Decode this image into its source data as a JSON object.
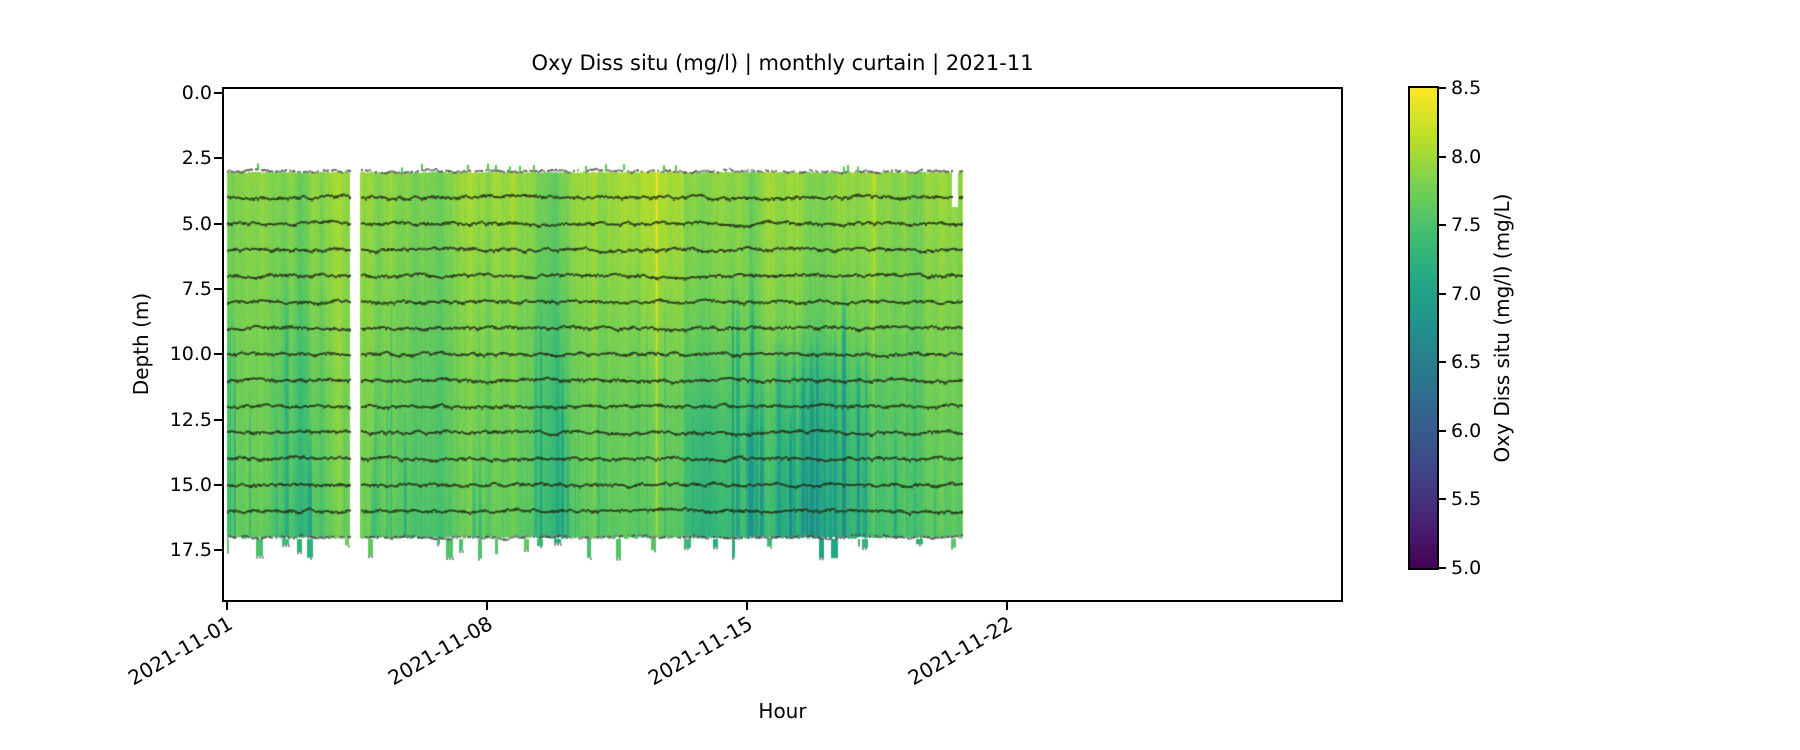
{
  "title": "Oxy Diss situ (mg/l) | monthly curtain | 2021-11",
  "axes": {
    "xlabel": "Hour",
    "ylabel": "Depth (m)",
    "x_tick_labels": [
      "2021-11-01",
      "2021-11-08",
      "2021-11-15",
      "2021-11-22"
    ],
    "x_tick_days": [
      0,
      7,
      14,
      21
    ],
    "x_range_days": [
      0,
      30
    ],
    "y_ticks": [
      "0.0",
      "2.5",
      "5.0",
      "7.5",
      "10.0",
      "12.5",
      "15.0",
      "17.5"
    ],
    "y_tick_values": [
      0,
      2.5,
      5,
      7.5,
      10,
      12.5,
      15,
      17.5
    ],
    "y_range": [
      0,
      19.4
    ]
  },
  "colorbar": {
    "label": "Oxy Diss situ (mg/l) (mg/L)",
    "ticks": [
      "8.5",
      "8.0",
      "7.5",
      "7.0",
      "6.5",
      "6.0",
      "5.5",
      "5.0"
    ],
    "tick_values": [
      8.5,
      8.0,
      7.5,
      7.0,
      6.5,
      6.0,
      5.5,
      5.0
    ],
    "vmin": 5.0,
    "vmax": 8.5,
    "colormap": "viridis",
    "viridis_stops": [
      "#440154",
      "#482475",
      "#414487",
      "#355f8d",
      "#2a788e",
      "#21918c",
      "#22a884",
      "#44bf70",
      "#7ad151",
      "#bddf26",
      "#fde725"
    ]
  },
  "chart_data": {
    "type": "heatmap",
    "title": "Oxy Diss situ (mg/l) | monthly curtain | 2021-11",
    "xlabel": "Hour",
    "ylabel": "Depth (m)",
    "month": "2021-11",
    "x_start": "2021-11-01",
    "data_end_day": 19.8,
    "depth_top": 3.0,
    "depth_bottom": 17.0,
    "sparse_bottom_max": 17.9,
    "sensor_line_depths": [
      3,
      4,
      5,
      6,
      7,
      8,
      9,
      10,
      11,
      12,
      13,
      14,
      15,
      16,
      17
    ],
    "gaps": [
      {
        "start_day": 3.3,
        "end_day": 3.58,
        "depth_min": 0,
        "depth_max": 20
      },
      {
        "start_day": 19.5,
        "end_day": 19.68,
        "depth_min": 0,
        "depth_max": 4.35
      }
    ],
    "grid": {
      "days": [
        0,
        1,
        2,
        3,
        4,
        5,
        6,
        7,
        8,
        9,
        10,
        11,
        12,
        13,
        14,
        15,
        16,
        17,
        18,
        19
      ],
      "depths": [
        3,
        5,
        7,
        9,
        11,
        13,
        15,
        17
      ],
      "values": [
        [
          7.85,
          7.85,
          7.8,
          7.85,
          7.85,
          7.85,
          7.9,
          7.9,
          7.9,
          7.85,
          7.95,
          8.1,
          8.05,
          7.9,
          7.85,
          7.85,
          7.8,
          7.85,
          7.9,
          8.0
        ],
        [
          7.8,
          7.8,
          7.75,
          7.8,
          7.8,
          7.8,
          7.85,
          7.85,
          7.85,
          7.8,
          7.9,
          8.05,
          8.0,
          7.85,
          7.8,
          7.8,
          7.75,
          7.8,
          7.85,
          7.95
        ],
        [
          7.78,
          7.78,
          7.7,
          7.78,
          7.78,
          7.78,
          7.8,
          7.8,
          7.8,
          7.75,
          7.85,
          7.95,
          7.95,
          7.8,
          7.78,
          7.75,
          7.7,
          7.75,
          7.8,
          7.9
        ],
        [
          7.75,
          7.75,
          7.6,
          7.75,
          7.75,
          7.72,
          7.75,
          7.75,
          7.72,
          7.65,
          7.8,
          7.85,
          7.85,
          7.7,
          7.7,
          7.65,
          7.6,
          7.68,
          7.75,
          7.85
        ],
        [
          7.72,
          7.7,
          7.5,
          7.7,
          7.7,
          7.68,
          7.7,
          7.7,
          7.68,
          7.6,
          7.72,
          7.78,
          7.75,
          7.55,
          7.6,
          7.4,
          7.35,
          7.45,
          7.65,
          7.8
        ],
        [
          7.7,
          7.68,
          7.45,
          7.68,
          7.68,
          7.62,
          7.68,
          7.65,
          7.62,
          7.55,
          7.68,
          7.72,
          7.7,
          7.35,
          7.5,
          7.25,
          7.2,
          7.35,
          7.6,
          7.75
        ],
        [
          7.68,
          7.65,
          7.4,
          7.65,
          7.65,
          7.6,
          7.65,
          7.62,
          7.6,
          7.5,
          7.65,
          7.7,
          7.68,
          7.3,
          7.45,
          7.15,
          7.1,
          7.3,
          7.55,
          7.7
        ],
        [
          7.65,
          7.6,
          7.35,
          7.6,
          7.6,
          7.55,
          7.6,
          7.6,
          7.55,
          7.45,
          7.6,
          7.65,
          7.6,
          7.25,
          7.4,
          7.1,
          7.05,
          7.25,
          7.5,
          7.65
        ]
      ]
    },
    "streaks": {
      "base_prob": 0.04,
      "cluster_prob": 0.22,
      "strength": [
        0.15,
        0.6
      ],
      "top_depth": [
        6,
        14
      ],
      "clusters": [
        {
          "day_start": 2.0,
          "day_end": 2.45
        },
        {
          "day_start": 8.8,
          "day_end": 9.2
        },
        {
          "day_start": 13.2,
          "day_end": 14.4
        },
        {
          "day_start": 14.7,
          "day_end": 18.4
        }
      ]
    },
    "column_noise": 0.1,
    "pixel_noise": 0.05
  }
}
